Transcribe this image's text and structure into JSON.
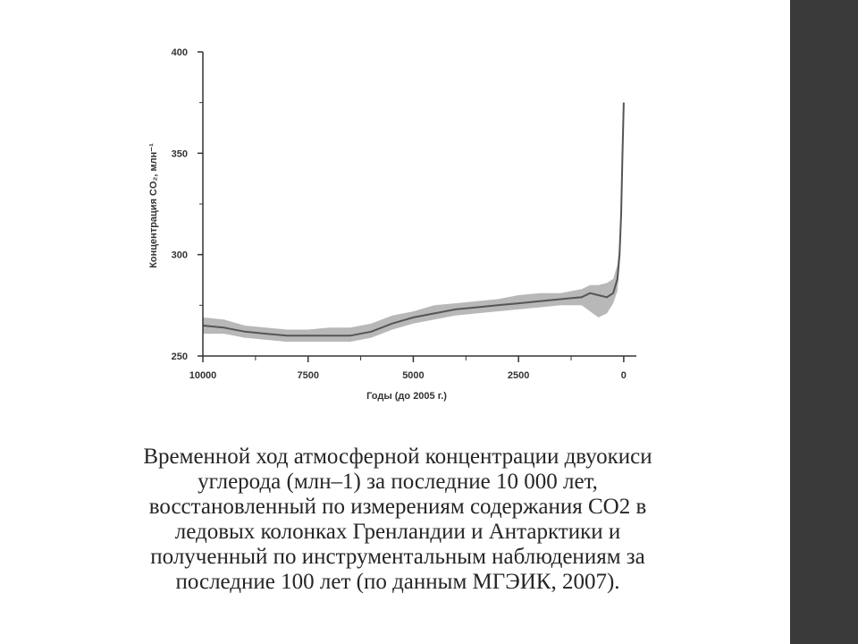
{
  "colors": {
    "right_bar": "#3a3a3a",
    "band": "#b8b8b8",
    "line": "#555555",
    "axis": "#333333",
    "caption_text": "#262626"
  },
  "chart_data": {
    "type": "line",
    "title": "",
    "xlabel": "Годы (до 2005 г.)",
    "ylabel": "Концентрация CO₂, млн⁻¹",
    "xlim": [
      10000,
      -300
    ],
    "ylim": [
      250,
      400
    ],
    "x_reversed": true,
    "x_ticks": [
      10000,
      7500,
      5000,
      2500,
      0
    ],
    "x_tick_labels": [
      "10000",
      "7500",
      "5000",
      "2500",
      "0"
    ],
    "y_ticks": [
      250,
      300,
      350,
      400
    ],
    "y_tick_labels": [
      "250",
      "300",
      "350",
      "400"
    ],
    "grid": false,
    "legend": "none",
    "series": [
      {
        "x": [
          10000,
          9500,
          9000,
          8500,
          8000,
          7500,
          7000,
          6500,
          6000,
          5500,
          5000,
          4500,
          4000,
          3500,
          3000,
          2500,
          2000,
          1500,
          1000,
          800,
          600,
          400,
          250,
          150,
          100,
          60,
          30,
          0
        ],
        "values": [
          265,
          264,
          262,
          261,
          260,
          260,
          260,
          260,
          262,
          266,
          269,
          271,
          273,
          274,
          275,
          276,
          277,
          278,
          279,
          281,
          280,
          279,
          281,
          288,
          300,
          320,
          350,
          375
        ],
        "band_low": [
          261,
          261,
          259,
          258,
          257,
          257,
          257,
          257,
          259,
          263,
          266,
          268,
          270,
          271,
          272,
          273,
          274,
          275,
          275,
          272,
          269,
          271,
          276,
          282,
          294,
          314,
          344,
          372
        ],
        "band_high": [
          269,
          268,
          265,
          264,
          263,
          263,
          264,
          264,
          266,
          270,
          272,
          275,
          276,
          277,
          278,
          280,
          281,
          281,
          283,
          285,
          285,
          286,
          288,
          295,
          306,
          326,
          356,
          378
        ]
      }
    ]
  },
  "caption": {
    "lines": [
      "Временной ход атмосферной концентрации двуокиси",
      "углерода (млн–1) за последние 10 000 лет,",
      "восстановленный по измерениям содержания СО2 в",
      "ледовых колонках Гренландии и Антарктики и",
      "полученный по инструментальным наблюдениям за",
      "последние 100 лет (по данным МГЭИК, 2007)."
    ]
  }
}
